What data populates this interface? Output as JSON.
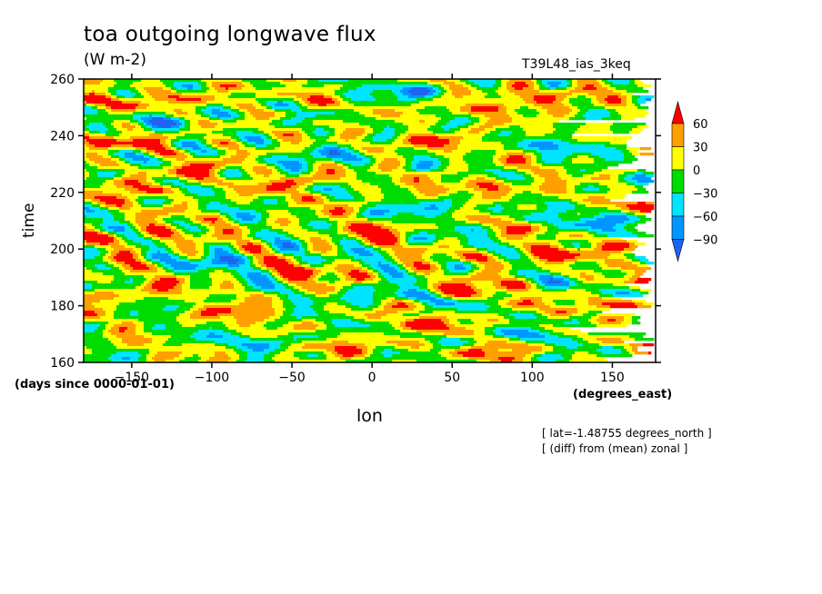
{
  "title": "toa outgoing longwave flux",
  "units": "(W m-2)",
  "run_label": "T39L48_ias_3keq",
  "notes": [
    "[ lat=-1.48755 degrees_north ]",
    "[ (diff) from (mean) zonal ]"
  ],
  "chart_data": {
    "type": "heatmap",
    "title": "toa outgoing longwave flux",
    "xlabel": "lon",
    "x_units": "(degrees_east)",
    "ylabel": "time",
    "y_units": "(days since 0000-01-01)",
    "xlim": [
      -180,
      177
    ],
    "ylim": [
      160,
      260
    ],
    "x_ticks": [
      -150,
      -100,
      -50,
      0,
      50,
      100,
      150
    ],
    "y_ticks": [
      160,
      180,
      200,
      220,
      240,
      260
    ],
    "colorbar": {
      "levels": [
        -90,
        -60,
        -30,
        0,
        30,
        60
      ],
      "colors": [
        "#1e64f0",
        "#0096ff",
        "#00e4ff",
        "#00dc00",
        "#ffff00",
        "#ffa000",
        "#ff0000"
      ]
    },
    "anomaly_bands": [
      {
        "lon": -170,
        "day": 252,
        "value": 90
      },
      {
        "lon": -100,
        "day": 253,
        "value": 80
      },
      {
        "lon": 80,
        "day": 250,
        "value": 95
      },
      {
        "lon": 120,
        "day": 255,
        "value": 85
      },
      {
        "lon": -160,
        "day": 238,
        "value": 90
      },
      {
        "lon": 35,
        "day": 238,
        "value": 80
      },
      {
        "lon": -110,
        "day": 228,
        "value": 95
      },
      {
        "lon": -45,
        "day": 224,
        "value": 85
      },
      {
        "lon": 75,
        "day": 222,
        "value": 95
      },
      {
        "lon": -150,
        "day": 220,
        "value": 85
      },
      {
        "lon": -140,
        "day": 205,
        "value": 90
      },
      {
        "lon": 5,
        "day": 207,
        "value": 80
      },
      {
        "lon": 100,
        "day": 198,
        "value": 100
      },
      {
        "lon": 160,
        "day": 200,
        "value": 80
      },
      {
        "lon": -40,
        "day": 192,
        "value": 80
      },
      {
        "lon": 60,
        "day": 186,
        "value": 85
      },
      {
        "lon": -160,
        "day": 184,
        "value": 90
      },
      {
        "lon": 150,
        "day": 180,
        "value": 100
      },
      {
        "lon": -80,
        "day": 178,
        "value": 85
      },
      {
        "lon": 30,
        "day": 173,
        "value": 90
      },
      {
        "lon": 80,
        "day": 164,
        "value": 75
      },
      {
        "lon": -20,
        "day": 166,
        "value": 75
      },
      {
        "lon": -30,
        "day": 232,
        "value": -90
      },
      {
        "lon": 40,
        "day": 214,
        "value": -90
      },
      {
        "lon": 120,
        "day": 236,
        "value": -85
      },
      {
        "lon": -90,
        "day": 196,
        "value": -85
      },
      {
        "lon": 0,
        "day": 183,
        "value": -90
      },
      {
        "lon": 110,
        "day": 170,
        "value": -85
      },
      {
        "lon": -120,
        "day": 246,
        "value": -80
      },
      {
        "lon": 20,
        "day": 256,
        "value": -80
      },
      {
        "lon": -60,
        "day": 168,
        "value": -85
      },
      {
        "lon": 140,
        "day": 210,
        "value": -80
      }
    ]
  }
}
